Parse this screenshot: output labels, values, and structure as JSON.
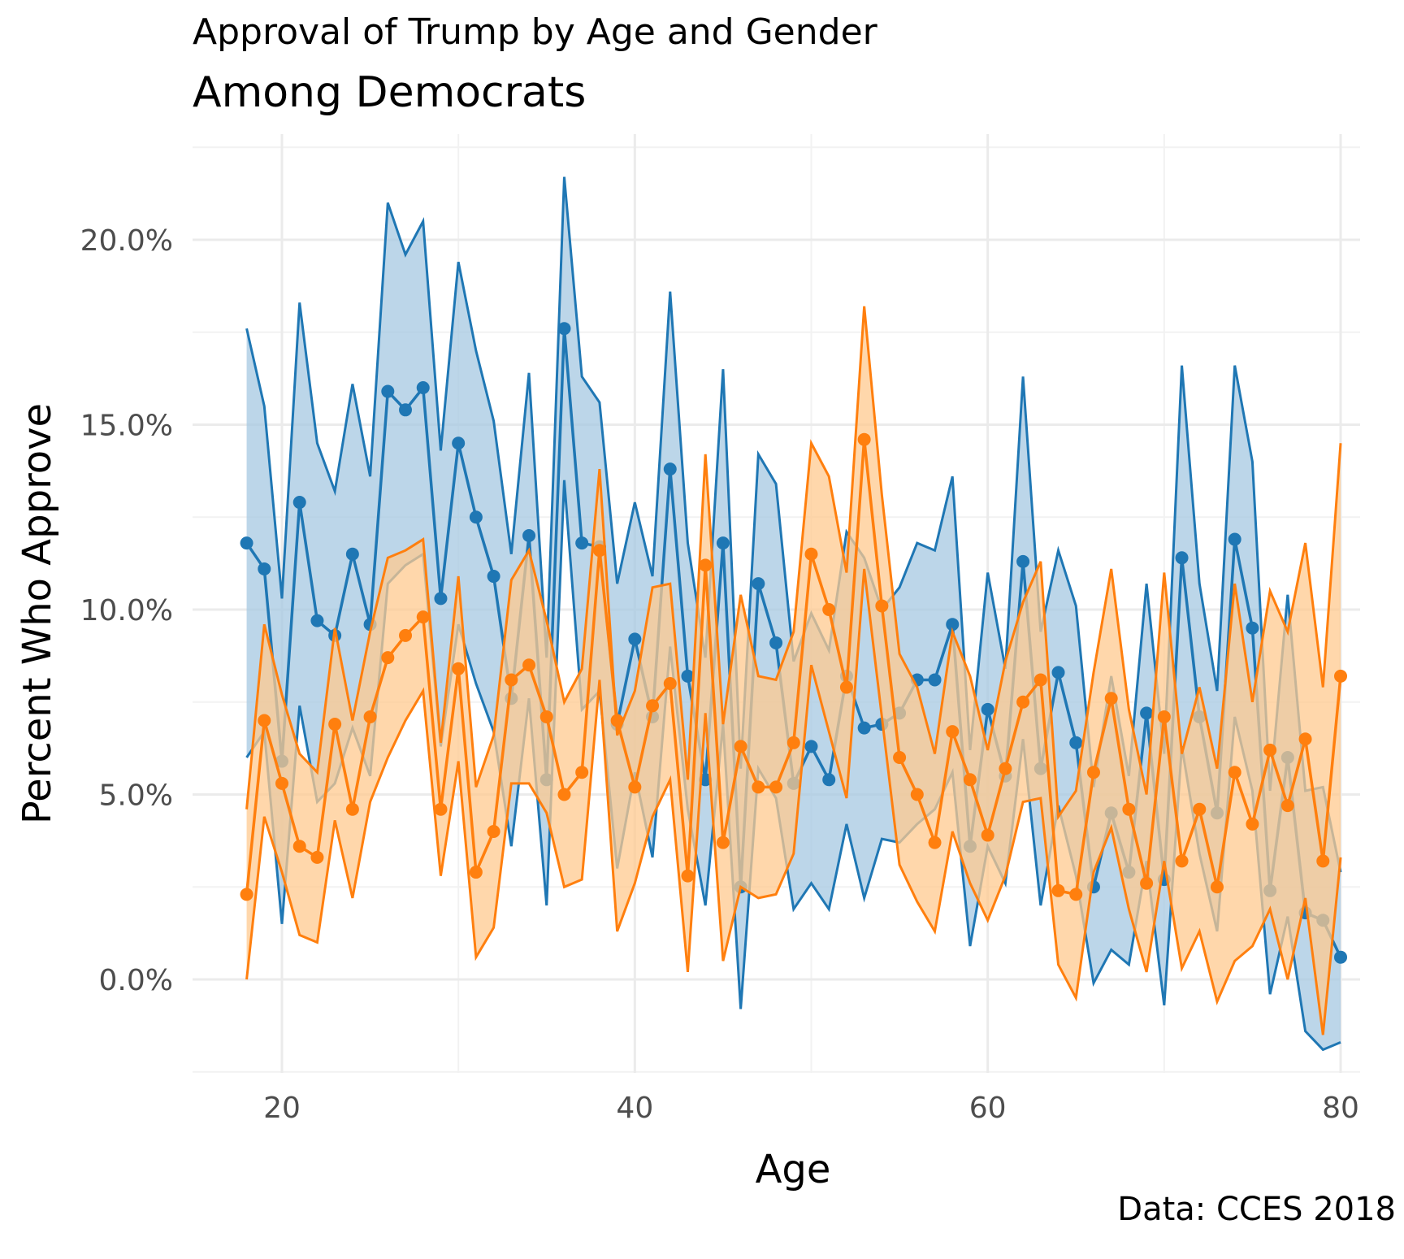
{
  "chart_data": {
    "type": "line",
    "title": "Approval of Trump by Age and Gender",
    "subtitle": "Among Democrats",
    "caption": "Data: CCES 2018",
    "xlabel": "Age",
    "ylabel": "Percent Who Approve",
    "xlim": [
      18,
      80
    ],
    "ylim": [
      -0.025,
      0.22
    ],
    "x_ticks": [
      20,
      40,
      60,
      80
    ],
    "x_tick_labels": [
      "20",
      "40",
      "60",
      "80"
    ],
    "y_ticks": [
      0,
      0.05,
      0.1,
      0.15,
      0.2
    ],
    "y_tick_labels": [
      "0.0%",
      "5.0%",
      "10.0%",
      "15.0%",
      "20.0%"
    ],
    "grid": true,
    "legend": "none",
    "x": [
      18,
      19,
      20,
      21,
      22,
      23,
      24,
      25,
      26,
      27,
      28,
      29,
      30,
      31,
      32,
      33,
      34,
      35,
      36,
      37,
      38,
      39,
      40,
      41,
      42,
      43,
      44,
      45,
      46,
      47,
      48,
      49,
      50,
      51,
      52,
      53,
      54,
      55,
      56,
      57,
      58,
      59,
      60,
      61,
      62,
      63,
      64,
      65,
      66,
      67,
      68,
      69,
      70,
      71,
      72,
      73,
      74,
      75,
      76,
      77,
      78,
      79,
      80
    ],
    "series": [
      {
        "color": "#1f77b4",
        "fill": "#a6c8e2",
        "values": [
          0.118,
          0.111,
          0.059,
          0.129,
          0.097,
          0.093,
          0.115,
          0.096,
          0.159,
          0.154,
          0.16,
          0.103,
          0.145,
          0.125,
          0.109,
          0.076,
          0.12,
          0.054,
          0.176,
          0.118,
          0.117,
          0.069,
          0.092,
          0.071,
          0.138,
          0.082,
          0.054,
          0.118,
          0.025,
          0.107,
          0.091,
          0.053,
          0.063,
          0.054,
          0.082,
          0.068,
          0.069,
          0.072,
          0.081,
          0.081,
          0.096,
          0.036,
          0.073,
          0.055,
          0.113,
          0.057,
          0.083,
          0.064,
          0.025,
          0.045,
          0.029,
          0.072,
          0.027,
          0.114,
          0.071,
          0.045,
          0.119,
          0.095,
          0.024,
          0.06,
          0.018,
          0.016,
          0.006
        ],
        "lower": [
          0.06,
          0.067,
          0.015,
          0.074,
          0.048,
          0.053,
          0.068,
          0.055,
          0.107,
          0.112,
          0.115,
          0.063,
          0.096,
          0.08,
          0.067,
          0.036,
          0.076,
          0.02,
          0.135,
          0.073,
          0.078,
          0.03,
          0.056,
          0.033,
          0.09,
          0.046,
          0.02,
          0.069,
          -0.008,
          0.057,
          0.049,
          0.019,
          0.026,
          0.019,
          0.042,
          0.022,
          0.038,
          0.037,
          0.042,
          0.046,
          0.056,
          0.009,
          0.036,
          0.026,
          0.065,
          0.02,
          0.047,
          0.028,
          -0.001,
          0.008,
          0.004,
          0.032,
          -0.007,
          0.063,
          0.034,
          0.013,
          0.071,
          0.051,
          -0.004,
          0.017,
          -0.014,
          -0.019,
          -0.017
        ],
        "upper": [
          0.176,
          0.155,
          0.103,
          0.183,
          0.145,
          0.132,
          0.161,
          0.136,
          0.21,
          0.196,
          0.205,
          0.143,
          0.194,
          0.17,
          0.151,
          0.115,
          0.164,
          0.087,
          0.217,
          0.163,
          0.156,
          0.107,
          0.129,
          0.109,
          0.186,
          0.118,
          0.087,
          0.165,
          0.057,
          0.142,
          0.134,
          0.086,
          0.099,
          0.089,
          0.121,
          0.114,
          0.1,
          0.106,
          0.118,
          0.116,
          0.136,
          0.062,
          0.11,
          0.084,
          0.163,
          0.094,
          0.116,
          0.101,
          0.052,
          0.082,
          0.055,
          0.107,
          0.061,
          0.166,
          0.107,
          0.078,
          0.166,
          0.14,
          0.051,
          0.104,
          0.051,
          0.052,
          0.029
        ]
      },
      {
        "color": "#ff7f0e",
        "fill": "#ffc98f",
        "values": [
          0.023,
          0.07,
          0.053,
          0.036,
          0.033,
          0.069,
          0.046,
          0.071,
          0.087,
          0.093,
          0.098,
          0.046,
          0.084,
          0.029,
          0.04,
          0.081,
          0.085,
          0.071,
          0.05,
          0.056,
          0.116,
          0.07,
          0.052,
          0.074,
          0.08,
          0.028,
          0.112,
          0.037,
          0.063,
          0.052,
          0.052,
          0.064,
          0.115,
          0.1,
          0.079,
          0.146,
          0.101,
          0.06,
          0.05,
          0.037,
          0.067,
          0.054,
          0.039,
          0.057,
          0.075,
          0.081,
          0.024,
          0.023,
          0.056,
          0.076,
          0.046,
          0.026,
          0.071,
          0.032,
          0.046,
          0.025,
          0.056,
          0.042,
          0.062,
          0.047,
          0.065,
          0.032,
          0.082
        ],
        "lower": [
          0.0,
          0.044,
          0.029,
          0.012,
          0.01,
          0.043,
          0.022,
          0.048,
          0.06,
          0.07,
          0.078,
          0.028,
          0.059,
          0.006,
          0.014,
          0.053,
          0.053,
          0.045,
          0.025,
          0.027,
          0.081,
          0.013,
          0.026,
          0.044,
          0.054,
          0.002,
          0.072,
          0.005,
          0.025,
          0.022,
          0.023,
          0.034,
          0.085,
          0.067,
          0.049,
          0.111,
          0.071,
          0.031,
          0.021,
          0.013,
          0.04,
          0.026,
          0.016,
          0.028,
          0.048,
          0.049,
          0.004,
          -0.005,
          0.029,
          0.041,
          0.019,
          0.002,
          0.032,
          0.003,
          0.013,
          -0.006,
          0.005,
          0.009,
          0.019,
          0.0,
          0.022,
          -0.015,
          0.033
        ],
        "upper": [
          0.046,
          0.096,
          0.077,
          0.061,
          0.056,
          0.095,
          0.07,
          0.094,
          0.114,
          0.116,
          0.119,
          0.064,
          0.109,
          0.052,
          0.066,
          0.108,
          0.116,
          0.097,
          0.075,
          0.084,
          0.138,
          0.066,
          0.078,
          0.106,
          0.107,
          0.054,
          0.142,
          0.069,
          0.104,
          0.082,
          0.081,
          0.094,
          0.145,
          0.136,
          0.11,
          0.182,
          0.131,
          0.088,
          0.079,
          0.061,
          0.094,
          0.082,
          0.062,
          0.086,
          0.102,
          0.113,
          0.044,
          0.051,
          0.083,
          0.111,
          0.073,
          0.05,
          0.11,
          0.061,
          0.079,
          0.057,
          0.107,
          0.075,
          0.105,
          0.094,
          0.118,
          0.079,
          0.145
        ]
      }
    ]
  }
}
